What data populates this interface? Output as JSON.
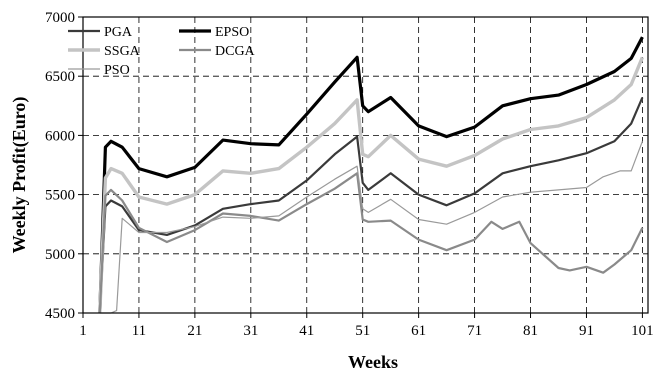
{
  "chart_data": {
    "type": "line",
    "xlabel": "Weeks",
    "ylabel": "Weekly Profit(Euro)",
    "xlim": [
      1,
      102
    ],
    "ylim": [
      4500,
      7000
    ],
    "grid": true,
    "legend_position": "top-left",
    "x_ticks": [
      1,
      11,
      21,
      31,
      41,
      51,
      61,
      71,
      81,
      91,
      101
    ],
    "y_ticks": [
      4500,
      5000,
      5500,
      6000,
      6500,
      7000
    ],
    "x_tick_labels": [
      "1",
      "11",
      "21",
      "31",
      "41",
      "51",
      "61",
      "71",
      "81",
      "91",
      "101"
    ],
    "y_tick_labels": [
      "4500",
      "5000",
      "5500",
      "6000",
      "6500",
      "7000"
    ],
    "legend": [
      "PGA",
      "EPSO",
      "SSGA",
      "DCGA",
      "PSO"
    ],
    "series": [
      {
        "name": "PGA",
        "color": "#3a3a3a",
        "width": 2.2,
        "points": [
          [
            4,
            4500
          ],
          [
            5,
            5400
          ],
          [
            6,
            5450
          ],
          [
            8,
            5400
          ],
          [
            11,
            5200
          ],
          [
            16,
            5160
          ],
          [
            21,
            5240
          ],
          [
            26,
            5380
          ],
          [
            31,
            5420
          ],
          [
            36,
            5450
          ],
          [
            41,
            5620
          ],
          [
            46,
            5840
          ],
          [
            50,
            5990
          ],
          [
            51,
            5600
          ],
          [
            52,
            5540
          ],
          [
            56,
            5680
          ],
          [
            61,
            5500
          ],
          [
            66,
            5410
          ],
          [
            71,
            5510
          ],
          [
            76,
            5680
          ],
          [
            81,
            5740
          ],
          [
            86,
            5790
          ],
          [
            91,
            5850
          ],
          [
            96,
            5950
          ],
          [
            99,
            6100
          ],
          [
            101,
            6320
          ]
        ]
      },
      {
        "name": "EPSO",
        "color": "#000000",
        "width": 3.2,
        "points": [
          [
            4,
            4500
          ],
          [
            5,
            5900
          ],
          [
            6,
            5950
          ],
          [
            8,
            5900
          ],
          [
            11,
            5720
          ],
          [
            16,
            5650
          ],
          [
            21,
            5730
          ],
          [
            26,
            5960
          ],
          [
            31,
            5930
          ],
          [
            36,
            5920
          ],
          [
            41,
            6180
          ],
          [
            46,
            6450
          ],
          [
            50,
            6660
          ],
          [
            51,
            6250
          ],
          [
            52,
            6200
          ],
          [
            56,
            6320
          ],
          [
            61,
            6080
          ],
          [
            66,
            5990
          ],
          [
            71,
            6070
          ],
          [
            76,
            6250
          ],
          [
            81,
            6310
          ],
          [
            86,
            6340
          ],
          [
            91,
            6430
          ],
          [
            96,
            6540
          ],
          [
            99,
            6650
          ],
          [
            101,
            6830
          ]
        ]
      },
      {
        "name": "SSGA",
        "color": "#c4c4c4",
        "width": 3.4,
        "points": [
          [
            4,
            4500
          ],
          [
            5,
            5640
          ],
          [
            6,
            5720
          ],
          [
            8,
            5680
          ],
          [
            11,
            5480
          ],
          [
            16,
            5420
          ],
          [
            21,
            5500
          ],
          [
            26,
            5700
          ],
          [
            31,
            5680
          ],
          [
            36,
            5720
          ],
          [
            41,
            5900
          ],
          [
            46,
            6100
          ],
          [
            50,
            6300
          ],
          [
            51,
            5840
          ],
          [
            52,
            5820
          ],
          [
            56,
            6000
          ],
          [
            61,
            5800
          ],
          [
            66,
            5740
          ],
          [
            71,
            5830
          ],
          [
            76,
            5970
          ],
          [
            81,
            6050
          ],
          [
            86,
            6080
          ],
          [
            91,
            6150
          ],
          [
            96,
            6300
          ],
          [
            99,
            6430
          ],
          [
            101,
            6660
          ]
        ]
      },
      {
        "name": "DCGA",
        "color": "#8a8a8a",
        "width": 2.2,
        "points": [
          [
            4,
            4500
          ],
          [
            5,
            5490
          ],
          [
            6,
            5540
          ],
          [
            8,
            5450
          ],
          [
            11,
            5220
          ],
          [
            16,
            5100
          ],
          [
            21,
            5200
          ],
          [
            26,
            5340
          ],
          [
            31,
            5320
          ],
          [
            36,
            5280
          ],
          [
            41,
            5420
          ],
          [
            46,
            5550
          ],
          [
            50,
            5680
          ],
          [
            51,
            5290
          ],
          [
            52,
            5270
          ],
          [
            56,
            5280
          ],
          [
            61,
            5120
          ],
          [
            66,
            5030
          ],
          [
            71,
            5120
          ],
          [
            74,
            5270
          ],
          [
            76,
            5210
          ],
          [
            79,
            5270
          ],
          [
            81,
            5090
          ],
          [
            86,
            4880
          ],
          [
            88,
            4860
          ],
          [
            91,
            4890
          ],
          [
            94,
            4840
          ],
          [
            96,
            4910
          ],
          [
            99,
            5030
          ],
          [
            101,
            5220
          ]
        ]
      },
      {
        "name": "PSO",
        "color": "#9a9a9a",
        "width": 1.2,
        "points": [
          [
            4,
            4500
          ],
          [
            5,
            4500
          ],
          [
            6,
            4500
          ],
          [
            7,
            4520
          ],
          [
            8,
            5300
          ],
          [
            11,
            5180
          ],
          [
            16,
            5180
          ],
          [
            21,
            5230
          ],
          [
            26,
            5310
          ],
          [
            31,
            5300
          ],
          [
            36,
            5320
          ],
          [
            41,
            5480
          ],
          [
            46,
            5630
          ],
          [
            50,
            5740
          ],
          [
            51,
            5380
          ],
          [
            52,
            5350
          ],
          [
            56,
            5460
          ],
          [
            61,
            5290
          ],
          [
            66,
            5250
          ],
          [
            71,
            5350
          ],
          [
            76,
            5480
          ],
          [
            81,
            5520
          ],
          [
            86,
            5540
          ],
          [
            91,
            5560
          ],
          [
            94,
            5650
          ],
          [
            97,
            5700
          ],
          [
            99,
            5700
          ],
          [
            101,
            5950
          ]
        ]
      }
    ]
  }
}
